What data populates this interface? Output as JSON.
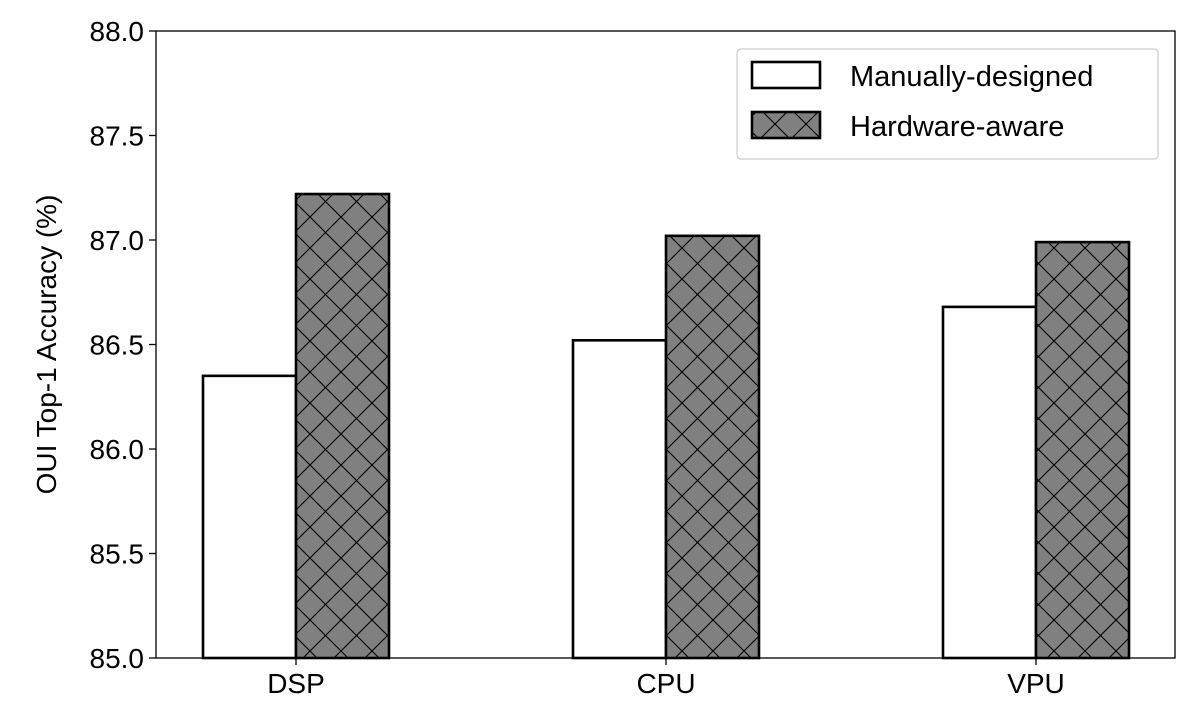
{
  "chart_data": {
    "type": "bar",
    "title": "",
    "xlabel": "",
    "ylabel": "OUI Top-1 Accuracy (%)",
    "categories": [
      "DSP",
      "CPU",
      "VPU"
    ],
    "ylim": [
      85.0,
      88.0
    ],
    "yticks": [
      "85.0",
      "85.5",
      "86.0",
      "86.5",
      "87.0",
      "87.5",
      "88.0"
    ],
    "series": [
      {
        "name": "Manually-designed",
        "values": [
          86.35,
          86.52,
          86.68
        ],
        "fill": "#ffffff",
        "hatch": "none"
      },
      {
        "name": "Hardware-aware",
        "values": [
          87.22,
          87.02,
          86.99
        ],
        "fill": "#808080",
        "hatch": "crosshatch"
      }
    ],
    "grid": false,
    "legend_position": "top-right"
  }
}
